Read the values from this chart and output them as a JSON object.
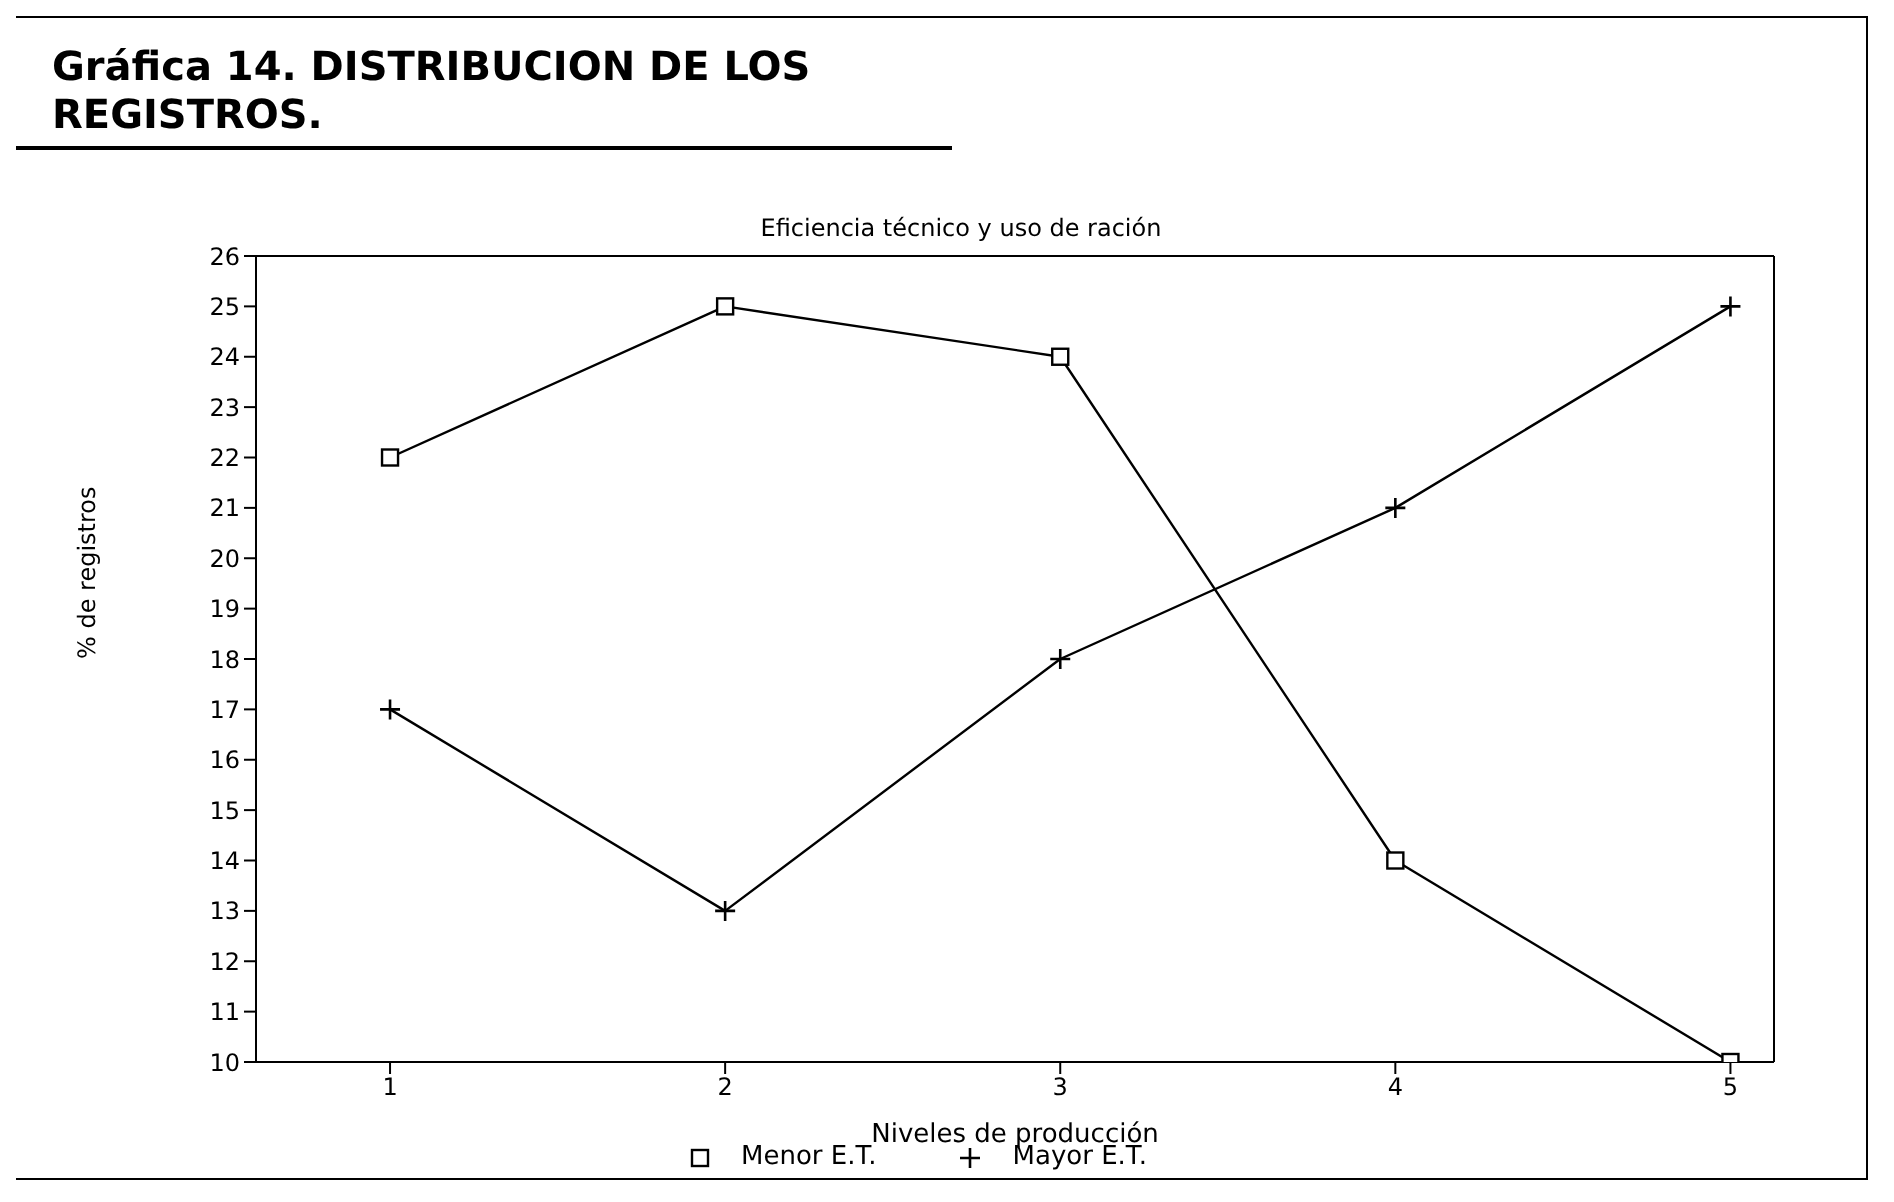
{
  "chart_data": {
    "type": "line",
    "title": "Gráfica 14. DISTRIBUCION DE LOS REGISTROS.",
    "subtitle": "Eficiencia técnico y uso de ración",
    "xlabel": "Niveles de producción",
    "ylabel": "% de registros",
    "x": [
      1,
      2,
      3,
      4,
      5
    ],
    "series": [
      {
        "name": "Menor E.T.",
        "color": "#000000",
        "marker": "square",
        "values": [
          22,
          25,
          24,
          14,
          10
        ]
      },
      {
        "name": "Mayor E.T.",
        "color": "#000000",
        "marker": "cross",
        "values": [
          17,
          13,
          18,
          21,
          25
        ]
      }
    ],
    "xlim": [
      0.6,
      5.13
    ],
    "xticks": [
      1,
      2,
      3,
      4,
      5
    ],
    "ylim": [
      10,
      26
    ],
    "yticks": [
      10,
      11,
      12,
      13,
      14,
      15,
      16,
      17,
      18,
      19,
      20,
      21,
      22,
      23,
      24,
      25,
      26
    ],
    "grid": false,
    "legend": "bottom",
    "line_style": "solid"
  }
}
